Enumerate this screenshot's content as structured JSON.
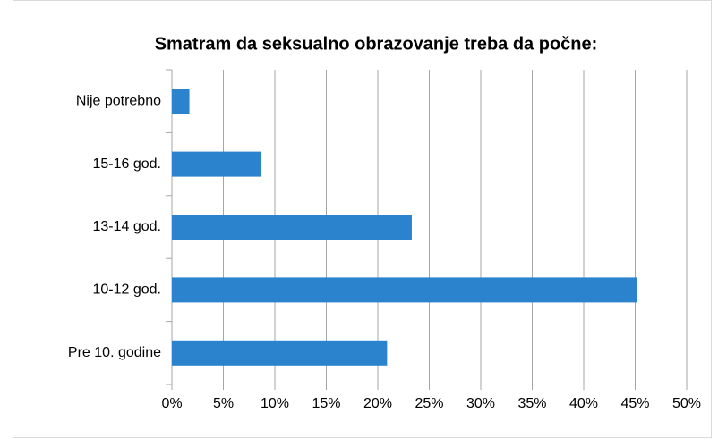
{
  "chart_data": {
    "type": "barh",
    "title": "Smatram da seksualno obrazovanje treba da počne:",
    "categories": [
      "Nije potrebno",
      "15-16 god.",
      "13-14 god.",
      "10-12 god.",
      "Pre 10. godine"
    ],
    "values": [
      1.7,
      8.7,
      23.3,
      45.2,
      20.9
    ],
    "color": "#2a83cc",
    "xlim": [
      0,
      50
    ],
    "xticks": [
      {
        "value": 0,
        "label": "0%"
      },
      {
        "value": 5,
        "label": "5%"
      },
      {
        "value": 10,
        "label": "10%"
      },
      {
        "value": 15,
        "label": "15%"
      },
      {
        "value": 20,
        "label": "20%"
      },
      {
        "value": 25,
        "label": "25%"
      },
      {
        "value": 30,
        "label": "30%"
      },
      {
        "value": 35,
        "label": "35%"
      },
      {
        "value": 40,
        "label": "40%"
      },
      {
        "value": 45,
        "label": "45%"
      },
      {
        "value": 50,
        "label": "50%"
      }
    ],
    "grid": true
  }
}
